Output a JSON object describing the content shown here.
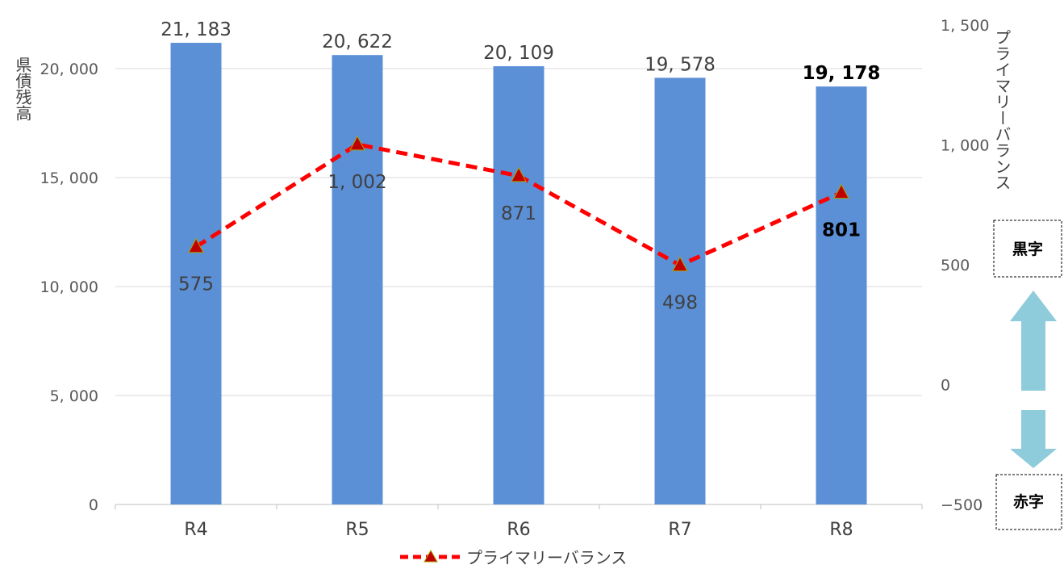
{
  "chart_data": {
    "type": "bar",
    "categories": [
      "R4",
      "R5",
      "R6",
      "R7",
      "R8"
    ],
    "series": [
      {
        "name": "県債残高",
        "type": "bar",
        "axis": "left",
        "values": [
          21183,
          20622,
          20109,
          19578,
          19178
        ],
        "labels": [
          "21, 183",
          "20, 622",
          "20, 109",
          "19, 578",
          "19, 178"
        ],
        "color": "#5b8fd6"
      },
      {
        "name": "プライマリーバランス",
        "type": "line",
        "axis": "right",
        "values": [
          575,
          1002,
          871,
          498,
          801
        ],
        "labels": [
          "575",
          "1, 002",
          "871",
          "498",
          "801"
        ],
        "color": "#ff0000",
        "marker_color": "#c00000",
        "line_style": "dashed",
        "marker": "triangle"
      }
    ],
    "ylabel": "県債残高",
    "y2label": "プライマリーバランス",
    "ylim": [
      0,
      22000
    ],
    "y2lim": [
      -500,
      1500
    ],
    "yticks": [
      0,
      5000,
      10000,
      15000,
      20000
    ],
    "ytick_labels": [
      "0",
      "5, 000",
      "10, 000",
      "15, 000",
      "20, 000"
    ],
    "y2ticks": [
      -500,
      0,
      500,
      1000,
      1500
    ],
    "y2tick_labels": [
      "−500",
      "0",
      "500",
      "1, 000",
      "1, 500"
    ],
    "grid": true,
    "legend": {
      "position": "bottom",
      "entries": [
        "プライマリーバランス"
      ]
    },
    "annotations": {
      "surplus_label": "黒字",
      "deficit_label": "赤字"
    }
  }
}
